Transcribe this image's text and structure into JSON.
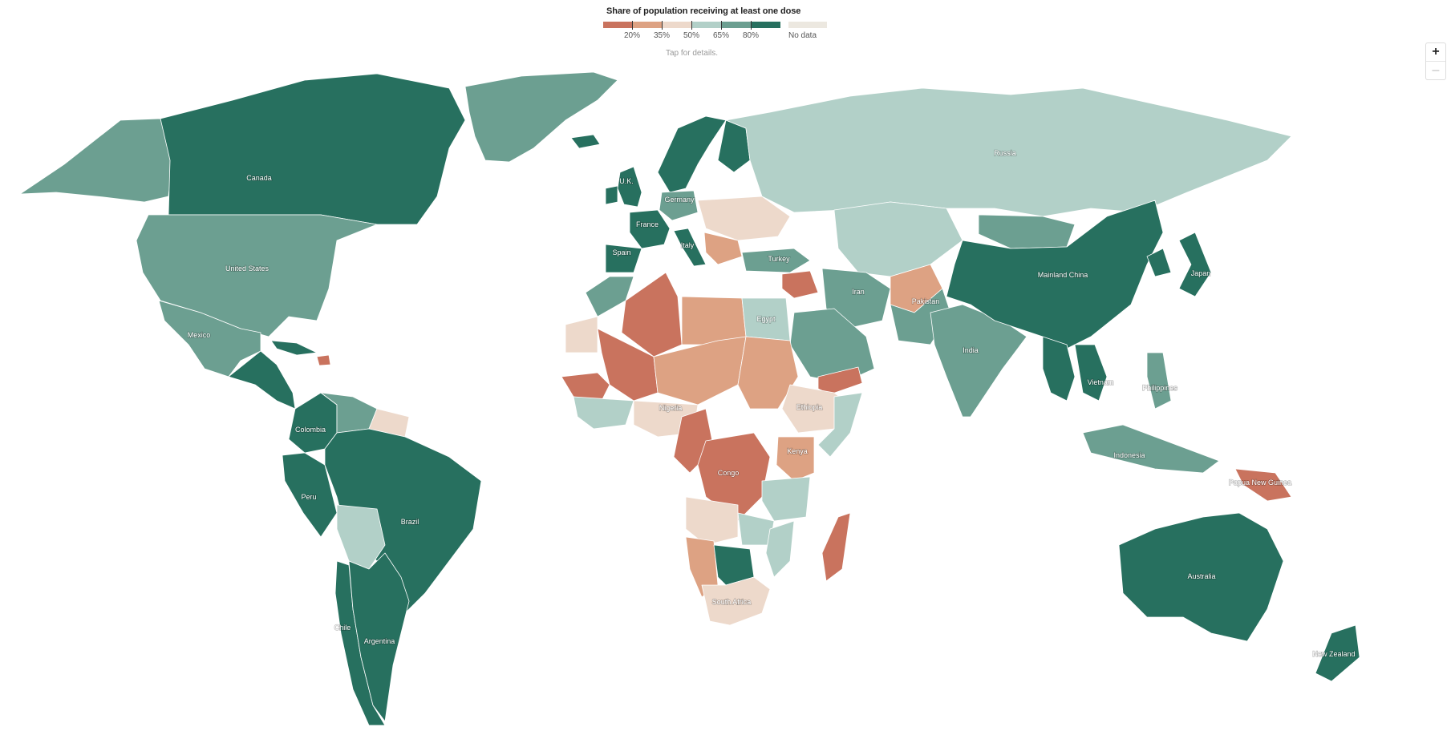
{
  "legend": {
    "title": "Share of population receiving at least one dose",
    "hint": "Tap for details.",
    "no_data_label": "No data",
    "tick_labels": [
      "20%",
      "35%",
      "50%",
      "65%",
      "80%"
    ],
    "bin_colors": [
      "#c9735e",
      "#dda283",
      "#edd9cb",
      "#b2d0c8",
      "#6c9f91",
      "#27705f"
    ],
    "no_data_color": "#ece8e0"
  },
  "zoom": {
    "in_label": "+",
    "out_label": "–"
  },
  "map": {
    "colors": {
      "under20": "#c9735e",
      "20to35": "#dda283",
      "35to50": "#edd9cb",
      "50to65": "#b2d0c8",
      "65to80": "#6c9f91",
      "over80": "#27705f",
      "no_data": "#ece8e0"
    },
    "labels": {
      "canada": "Canada",
      "united_states": "United States",
      "mexico": "Mexico",
      "colombia": "Colombia",
      "peru": "Peru",
      "brazil": "Brazil",
      "chile": "Chile",
      "argentina": "Argentina",
      "uk": "U.K.",
      "france": "France",
      "spain": "Spain",
      "germany": "Germany",
      "italy": "Italy",
      "turkey": "Turkey",
      "russia": "Russia",
      "egypt": "Egypt",
      "nigeria": "Nigeria",
      "ethiopia": "Ethiopia",
      "kenya": "Kenya",
      "congo": "Congo",
      "south_africa": "South Africa",
      "iran": "Iran",
      "pakistan": "Pakistan",
      "india": "India",
      "mainland_china": "Mainland China",
      "japan": "Japan",
      "vietnam": "Vietnam",
      "philippines": "Philippines",
      "indonesia": "Indonesia",
      "papua_new_guinea": "Papua New Guinea",
      "australia": "Australia",
      "new_zealand": "New Zealand"
    }
  }
}
